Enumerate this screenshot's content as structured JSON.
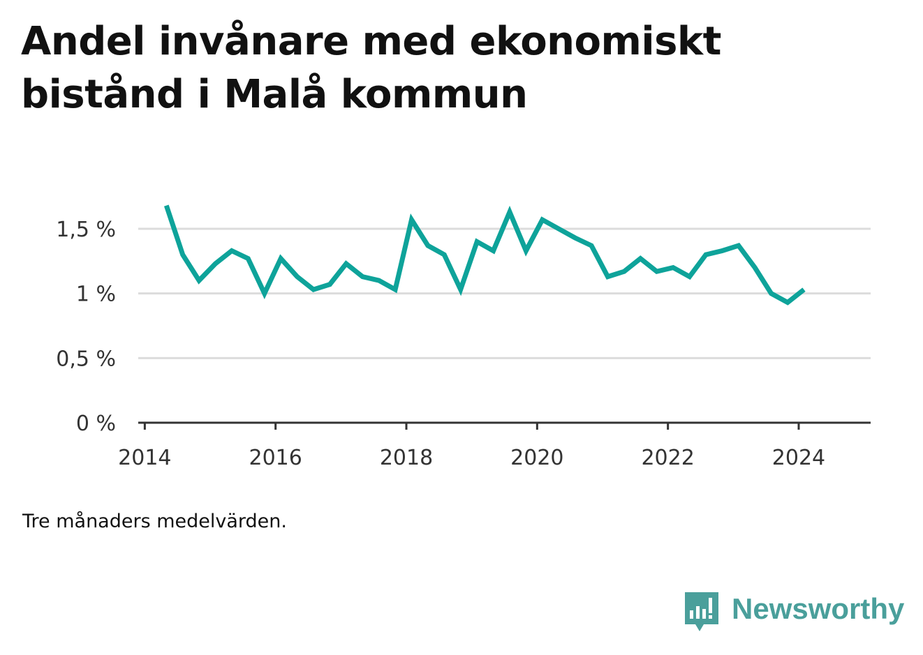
{
  "title": "Andel invånare med ekonomiskt bistånd i Malå kommun",
  "note": "Tre månaders medelvärden.",
  "brand": {
    "name": "Newsworthy",
    "color": "#4a9f9b",
    "icon": "newsworthy-logo-icon"
  },
  "colors": {
    "line": "#0ea39a",
    "grid": "#dcdcdc",
    "axis": "#333333"
  },
  "chart_data": {
    "type": "line",
    "title": "Andel invånare med ekonomiskt bistånd i Malå kommun",
    "xlabel": "",
    "ylabel": "",
    "xlim": [
      2013.9,
      2025.1
    ],
    "ylim": [
      0,
      1.5
    ],
    "x_ticks": [
      2014,
      2016,
      2018,
      2020,
      2022,
      2024
    ],
    "x_tick_labels": [
      "2014",
      "2016",
      "2018",
      "2020",
      "2022",
      "2024"
    ],
    "y_ticks": [
      0,
      0.5,
      1,
      1.5
    ],
    "y_tick_labels": [
      "0 %",
      "0,5 %",
      "1 %",
      "1,5 %"
    ],
    "grid": true,
    "series": [
      {
        "x": [
          2014.33,
          2014.58,
          2014.83,
          2015.08,
          2015.33,
          2015.58,
          2015.83,
          2016.08,
          2016.33,
          2016.58,
          2016.83,
          2017.08,
          2017.33,
          2017.58,
          2017.83,
          2018.08,
          2018.33,
          2018.58,
          2018.83,
          2019.08,
          2019.33,
          2019.58,
          2019.83,
          2020.08,
          2020.33,
          2020.58,
          2020.83,
          2021.08,
          2021.33,
          2021.58,
          2021.83,
          2022.08,
          2022.33,
          2022.58,
          2022.83,
          2023.08,
          2023.33,
          2023.58,
          2023.83,
          2024.08
        ],
        "y": [
          1.68,
          1.3,
          1.1,
          1.23,
          1.33,
          1.27,
          1.0,
          1.27,
          1.13,
          1.03,
          1.07,
          1.23,
          1.13,
          1.1,
          1.03,
          1.57,
          1.37,
          1.3,
          1.03,
          1.4,
          1.33,
          1.63,
          1.33,
          1.57,
          1.5,
          1.43,
          1.37,
          1.13,
          1.17,
          1.27,
          1.17,
          1.2,
          1.13,
          1.3,
          1.33,
          1.37,
          1.2,
          1.0,
          0.93,
          1.03
        ]
      }
    ]
  }
}
